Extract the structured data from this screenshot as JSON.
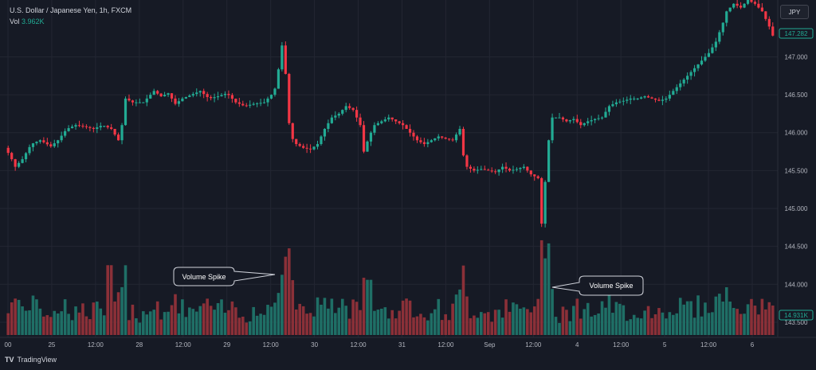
{
  "header": {
    "symbol_line": "U.S. Dollar / Japanese Yen, 1h, FXCM",
    "volume_label": "Vol",
    "volume_value": "3.962K",
    "currency_button": "JPY"
  },
  "footer": {
    "brand": "TradingView"
  },
  "colors": {
    "background": "#161a25",
    "up": "#22ab94",
    "down": "#f23645",
    "up_vol": "#1f6f66",
    "down_vol": "#8b3038",
    "grid": "#232632",
    "axis_text": "#b2b5be"
  },
  "chart_data": {
    "type": "candlestick",
    "x_tick_labels": [
      "00",
      "25",
      "12:00",
      "28",
      "12:00",
      "29",
      "12:00",
      "30",
      "12:00",
      "31",
      "12:00",
      "Sep",
      "12:00",
      "4",
      "12:00",
      "5",
      "12:00",
      "6"
    ],
    "y_tick_labels": [
      "143.500",
      "144.000",
      "144.500",
      "145.000",
      "145.500",
      "146.000",
      "146.500",
      "147.000"
    ],
    "ylim": [
      143.3,
      147.75
    ],
    "last_price": "147.282",
    "last_volume": "14.931K",
    "annotations": [
      "Volume Spike",
      "Volume Spike"
    ],
    "price_path": [
      [
        0,
        145.8
      ],
      [
        3,
        145.7
      ],
      [
        6,
        145.55
      ],
      [
        10,
        145.65
      ],
      [
        15,
        145.85
      ],
      [
        20,
        145.9
      ],
      [
        26,
        145.82
      ],
      [
        30,
        145.9
      ],
      [
        35,
        146.05
      ],
      [
        40,
        146.1
      ],
      [
        45,
        146.08
      ],
      [
        50,
        146.05
      ],
      [
        55,
        146.1
      ],
      [
        60,
        146.05
      ],
      [
        64,
        145.9
      ],
      [
        66,
        146.1
      ],
      [
        68,
        146.45
      ],
      [
        72,
        146.4
      ],
      [
        78,
        146.4
      ],
      [
        84,
        146.55
      ],
      [
        88,
        146.48
      ],
      [
        92,
        146.52
      ],
      [
        96,
        146.38
      ],
      [
        100,
        146.45
      ],
      [
        105,
        146.5
      ],
      [
        110,
        146.55
      ],
      [
        115,
        146.45
      ],
      [
        120,
        146.48
      ],
      [
        125,
        146.52
      ],
      [
        130,
        146.4
      ],
      [
        135,
        146.35
      ],
      [
        140,
        146.38
      ],
      [
        146,
        146.4
      ],
      [
        150,
        146.5
      ],
      [
        153,
        146.62
      ],
      [
        155,
        147.05
      ],
      [
        157,
        147.25
      ],
      [
        159,
        146.3
      ],
      [
        161,
        145.95
      ],
      [
        164,
        145.85
      ],
      [
        168,
        145.8
      ],
      [
        172,
        145.78
      ],
      [
        176,
        145.85
      ],
      [
        180,
        146.05
      ],
      [
        184,
        146.2
      ],
      [
        188,
        146.25
      ],
      [
        192,
        146.35
      ],
      [
        196,
        146.3
      ],
      [
        200,
        146.1
      ],
      [
        202,
        145.75
      ],
      [
        205,
        145.95
      ],
      [
        208,
        146.1
      ],
      [
        212,
        146.15
      ],
      [
        216,
        146.2
      ],
      [
        220,
        146.15
      ],
      [
        224,
        146.1
      ],
      [
        228,
        146.0
      ],
      [
        232,
        145.9
      ],
      [
        236,
        145.85
      ],
      [
        240,
        145.9
      ],
      [
        244,
        145.95
      ],
      [
        248,
        145.92
      ],
      [
        252,
        145.9
      ],
      [
        256,
        146.05
      ],
      [
        258,
        145.7
      ],
      [
        260,
        145.55
      ],
      [
        264,
        145.5
      ],
      [
        268,
        145.52
      ],
      [
        272,
        145.5
      ],
      [
        276,
        145.48
      ],
      [
        280,
        145.55
      ],
      [
        284,
        145.5
      ],
      [
        288,
        145.52
      ],
      [
        292,
        145.55
      ],
      [
        296,
        145.45
      ],
      [
        300,
        145.4
      ],
      [
        302,
        144.8
      ],
      [
        304,
        145.35
      ],
      [
        306,
        145.9
      ],
      [
        308,
        146.2
      ],
      [
        312,
        146.2
      ],
      [
        316,
        146.15
      ],
      [
        320,
        146.18
      ],
      [
        324,
        146.1
      ],
      [
        328,
        146.15
      ],
      [
        332,
        146.18
      ],
      [
        336,
        146.2
      ],
      [
        340,
        146.35
      ],
      [
        344,
        146.4
      ],
      [
        348,
        146.42
      ],
      [
        352,
        146.45
      ],
      [
        356,
        146.45
      ],
      [
        360,
        146.48
      ],
      [
        364,
        146.45
      ],
      [
        368,
        146.42
      ],
      [
        372,
        146.45
      ],
      [
        376,
        146.55
      ],
      [
        380,
        146.65
      ],
      [
        384,
        146.75
      ],
      [
        388,
        146.85
      ],
      [
        392,
        146.95
      ],
      [
        396,
        147.05
      ],
      [
        400,
        147.2
      ],
      [
        404,
        147.45
      ],
      [
        406,
        147.6
      ],
      [
        410,
        147.7
      ],
      [
        414,
        147.65
      ],
      [
        418,
        147.75
      ],
      [
        422,
        147.7
      ],
      [
        426,
        147.6
      ],
      [
        430,
        147.4
      ],
      [
        432,
        147.28
      ]
    ],
    "volume_spikes": [
      {
        "x": 58,
        "v": 4.3
      },
      {
        "x": 157,
        "v": 4.1
      },
      {
        "x": 204,
        "v": 3.4
      },
      {
        "x": 256,
        "v": 2.8
      },
      {
        "x": 303,
        "v": 3.9
      },
      {
        "x": 405,
        "v": 2.5
      }
    ]
  }
}
